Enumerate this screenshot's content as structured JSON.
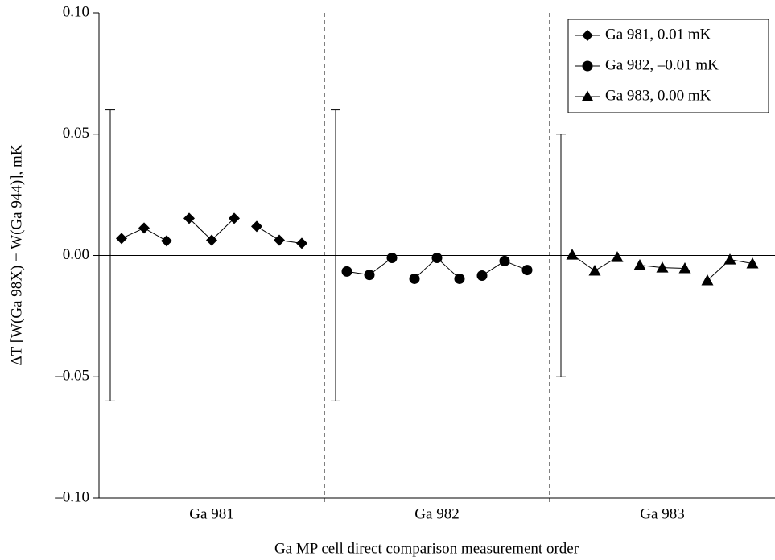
{
  "chart_data": {
    "type": "line",
    "xlabel": "Ga MP cell direct comparison measurement order",
    "ylabel": "ΔT [W(Ga 98X) − W(Ga 944)], mK",
    "xlim": [
      0,
      30
    ],
    "ylim": [
      -0.1,
      0.1
    ],
    "yticks": [
      {
        "value": 0.1,
        "label": "0.10"
      },
      {
        "value": 0.05,
        "label": "0.05"
      },
      {
        "value": 0,
        "label": "0.00"
      },
      {
        "value": -0.05,
        "label": "–0.05"
      },
      {
        "value": -0.1,
        "label": "–0.10"
      }
    ],
    "xticks": [
      {
        "value": 5,
        "label": "Ga 981"
      },
      {
        "value": 15,
        "label": "Ga 982"
      },
      {
        "value": 25,
        "label": "Ga 983"
      }
    ],
    "separators": [
      10,
      20
    ],
    "zero_line": true,
    "legend": "upper right",
    "series": [
      {
        "name": "Ga 981, 0.01 mK",
        "color": "#000",
        "marker": "diamond",
        "x": [
          1,
          2,
          3,
          null,
          4,
          5,
          6,
          null,
          7,
          8,
          9
        ],
        "values": [
          0.007,
          0.0113,
          0.006,
          null,
          0.0153,
          0.0063,
          0.0153,
          null,
          0.012,
          0.0063,
          0.005
        ]
      },
      {
        "name": "Ga 982, –0.01 mK",
        "color": "#000",
        "marker": "circle",
        "x": [
          11,
          12,
          13,
          null,
          14,
          15,
          16,
          null,
          17,
          18,
          19
        ],
        "values": [
          -0.0066,
          -0.008,
          -0.001,
          null,
          -0.0096,
          -0.001,
          -0.0096,
          null,
          -0.0083,
          -0.0023,
          -0.006
        ]
      },
      {
        "name": "Ga 983, 0.00 mK",
        "color": "#000",
        "marker": "triangle",
        "x": [
          21,
          22,
          23,
          null,
          24,
          25,
          26,
          null,
          27,
          28,
          29
        ],
        "values": [
          0.0003,
          -0.0063,
          -0.0007,
          null,
          -0.004,
          -0.005,
          -0.0053,
          null,
          -0.0103,
          -0.0017,
          -0.0033
        ]
      }
    ],
    "error_bars": [
      {
        "x": 0.5,
        "value": 0,
        "error": 0.06
      },
      {
        "x": 10.5,
        "value": 0,
        "error": 0.06
      },
      {
        "x": 20.5,
        "value": 0,
        "error": 0.05
      }
    ]
  }
}
